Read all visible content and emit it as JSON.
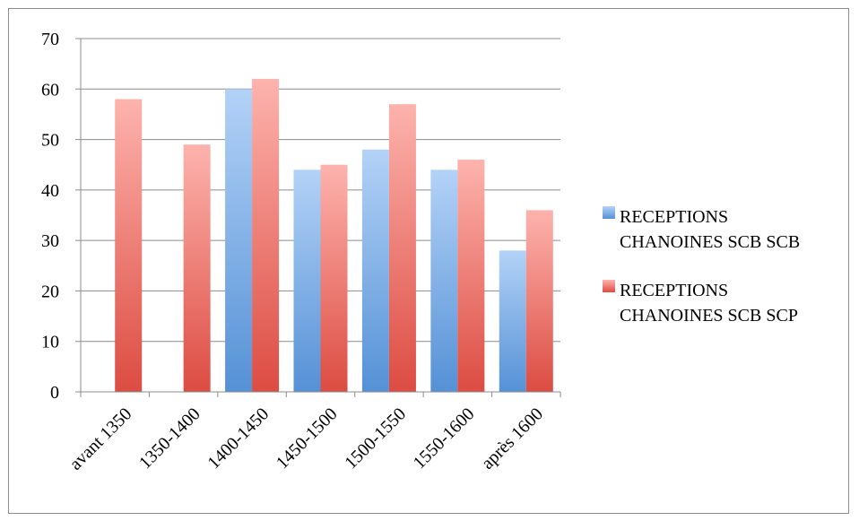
{
  "chart_data": {
    "type": "bar",
    "title": "",
    "xlabel": "",
    "ylabel": "",
    "categories": [
      "avant 1350",
      "1350-1400",
      "1400-1450",
      "1450-1500",
      "1500-1550",
      "1550-1600",
      "après 1600"
    ],
    "series": [
      {
        "name_lines": [
          "RECEPTIONS",
          "CHANOINES SCB SCB"
        ],
        "color_top": "#b3d2f7",
        "color_bottom": "#5591d6",
        "values": [
          0,
          0,
          60,
          44,
          48,
          44,
          28
        ]
      },
      {
        "name_lines": [
          "RECEPTIONS",
          "CHANOINES SCB SCP"
        ],
        "color_top": "#fdb3ad",
        "color_bottom": "#dc4c42",
        "values": [
          58,
          49,
          62,
          45,
          57,
          46,
          36
        ]
      }
    ],
    "yticks": [
      "0",
      "10",
      "20",
      "30",
      "40",
      "50",
      "60",
      "70"
    ],
    "ylim": [
      0,
      70
    ],
    "grid": true,
    "legend_position": "right"
  }
}
